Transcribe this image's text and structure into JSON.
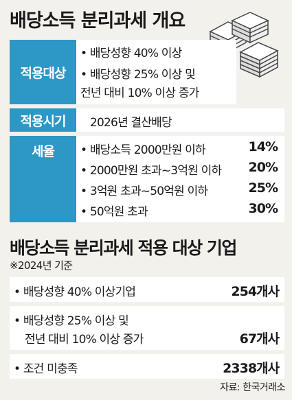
{
  "title": "배당소득 분리과세 개요",
  "icon": "stack-of-documents-icon",
  "colors": {
    "badge": "#2d97c6",
    "panel": "#ffffff",
    "background": "#f3f1ec"
  },
  "overview": {
    "target": {
      "label": "적용대상",
      "lines": [
        "• 배당성향 40% 이상",
        "• 배당성향 25% 이상 및",
        "전년 대비 10% 이상 증가"
      ]
    },
    "timing": {
      "label": "적용시기",
      "value": "2026년 결산배당"
    },
    "tax_rate": {
      "label": "세율",
      "brackets": [
        {
          "text": "• 배당소득 2000만원 이하",
          "rate": "14%"
        },
        {
          "text": "• 2000만원 초과~3억원 이하",
          "rate": "20%"
        },
        {
          "text": "• 3억원 초과~50억원 이하",
          "rate": "25%"
        },
        {
          "text": "• 50억원 초과",
          "rate": "30%"
        }
      ]
    }
  },
  "section2": {
    "title": "배당소득 분리과세 적용 대상 기업",
    "note": "※2024년 기준",
    "rows": [
      {
        "label_lines": [
          "• 배당성향 40% 이상기업"
        ],
        "value": "254개사"
      },
      {
        "label_lines": [
          "• 배당성향 25% 이상 및",
          "전년 대비 10% 이상 증가"
        ],
        "value": "67개사"
      },
      {
        "label_lines": [
          "• 조건 미충족"
        ],
        "value": "2338개사"
      }
    ]
  },
  "source": "자료: 한국거래소"
}
